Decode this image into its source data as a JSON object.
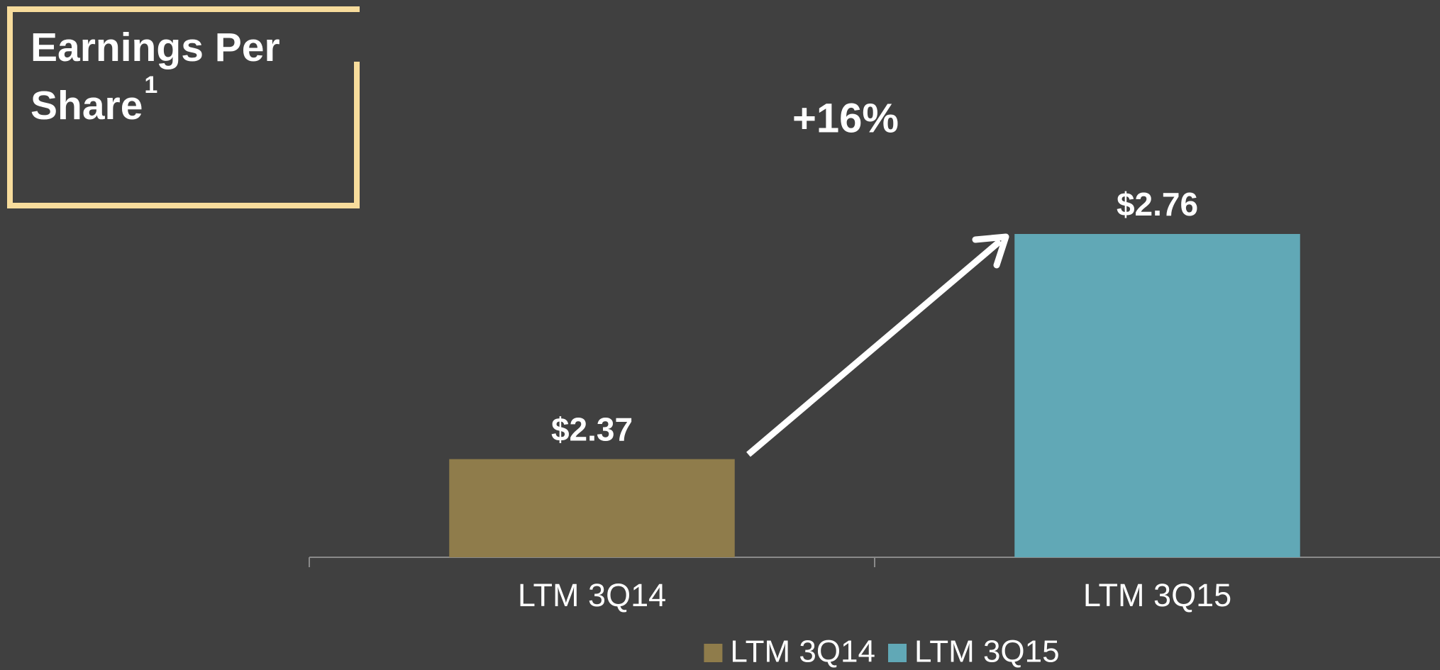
{
  "chart_data": {
    "type": "bar",
    "title": "Earnings Per Share",
    "title_superscript": "1",
    "annotation": "+16%",
    "categories": [
      "LTM 3Q14",
      "LTM 3Q15"
    ],
    "values": [
      2.37,
      2.76
    ],
    "value_labels": [
      "$2.37",
      "$2.76"
    ],
    "colors": [
      "#8f7c4b",
      "#61a8b6"
    ],
    "ylim": [
      2.2,
      2.9
    ],
    "legend": "bottom"
  }
}
